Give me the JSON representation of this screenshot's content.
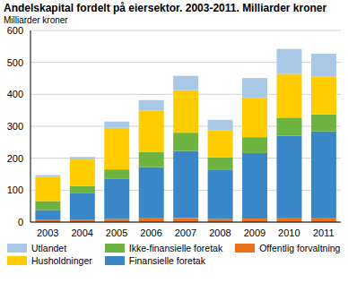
{
  "chart_data": {
    "type": "bar",
    "title": "Andelskapital fordelt på eiersektor. 2003-2011. Milliarder kroner",
    "y_label": "Milliarder kroner",
    "categories": [
      "2003",
      "2004",
      "2005",
      "2006",
      "2007",
      "2008",
      "2009",
      "2010",
      "2011"
    ],
    "stacked": true,
    "grid": true,
    "legend": "bottom",
    "ylim": [
      0,
      600
    ],
    "yticks": [
      0,
      100,
      200,
      300,
      400,
      500,
      600
    ],
    "series": [
      {
        "name": "Offentlig forvaltning",
        "color": "#e8731b",
        "values": [
          8,
          8,
          10,
          12,
          13,
          10,
          11,
          12,
          12
        ]
      },
      {
        "name": "Finansielle foretak",
        "color": "#3a87c8",
        "values": [
          30,
          82,
          125,
          160,
          210,
          155,
          205,
          258,
          272
        ]
      },
      {
        "name": "Ikke-finansielle foretak",
        "color": "#6db33f",
        "values": [
          28,
          23,
          30,
          48,
          57,
          38,
          50,
          57,
          53
        ]
      },
      {
        "name": "Husholdninger",
        "color": "#ffcc00",
        "values": [
          76,
          83,
          130,
          130,
          133,
          85,
          124,
          137,
          118
        ]
      },
      {
        "name": "Utlandet",
        "color": "#a9c8e6",
        "values": [
          5,
          8,
          20,
          32,
          45,
          32,
          61,
          78,
          72
        ]
      }
    ]
  }
}
